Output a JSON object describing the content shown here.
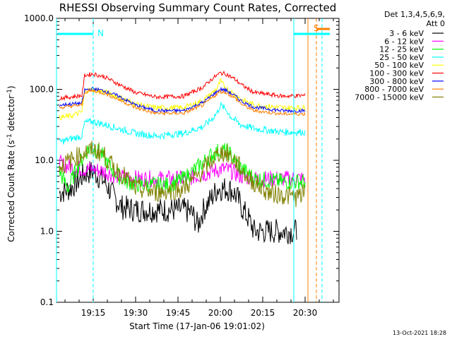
{
  "chart_data": {
    "type": "line",
    "title": "RHESSI Observing Summary Count Rates, Corrected",
    "xlabel": "Start Time (17-Jan-06 19:01:02)",
    "ylabel_main": "Corrected Count Rate (s",
    "ylabel_sup1": "-1",
    "ylabel_mid": " detector",
    "ylabel_sup2": "-1",
    "ylabel_end": ")",
    "yscale": "log",
    "ylim": [
      0.1,
      1000
    ],
    "xlim_minutes": [
      0,
      100
    ],
    "xtick_labels": [
      "19:15",
      "19:30",
      "19:45",
      "20:00",
      "20:15",
      "20:30"
    ],
    "xtick_minutes": [
      13,
      28,
      43,
      58,
      73,
      88
    ],
    "ytick_labels": [
      "0.1",
      "1.0",
      "10.0",
      "100.0",
      "1000.0"
    ],
    "ytick_values": [
      0.1,
      1,
      10,
      100,
      1000
    ],
    "legend_header1": "Det 1,3,4,5,6,9,",
    "legend_header2": "Att 0",
    "series": [
      {
        "name": "3 - 6 keV",
        "color": "#000000",
        "points": [
          [
            1,
            3.5
          ],
          [
            5,
            4
          ],
          [
            10,
            6.5
          ],
          [
            13,
            7
          ],
          [
            17,
            5
          ],
          [
            20,
            3.2
          ],
          [
            23,
            2.2
          ],
          [
            28,
            2
          ],
          [
            35,
            2
          ],
          [
            45,
            2
          ],
          [
            48,
            1.8
          ],
          [
            50,
            1.2
          ],
          [
            52,
            2
          ],
          [
            55,
            3
          ],
          [
            57,
            4
          ],
          [
            60,
            4
          ],
          [
            62,
            3.8
          ],
          [
            64,
            3
          ],
          [
            66,
            2
          ],
          [
            68,
            1.5
          ],
          [
            70,
            1
          ],
          [
            75,
            1
          ],
          [
            80,
            1
          ],
          [
            85,
            1
          ]
        ]
      },
      {
        "name": "6 - 12 keV",
        "color": "#ff00ff",
        "points": [
          [
            1,
            9
          ],
          [
            5,
            8
          ],
          [
            10,
            7.5
          ],
          [
            13,
            7.5
          ],
          [
            17,
            7
          ],
          [
            20,
            6.2
          ],
          [
            24,
            5.8
          ],
          [
            30,
            5.5
          ],
          [
            38,
            5.5
          ],
          [
            45,
            5.5
          ],
          [
            50,
            6
          ],
          [
            55,
            7
          ],
          [
            58,
            7.5
          ],
          [
            60,
            7.5
          ],
          [
            62,
            7
          ],
          [
            65,
            6
          ],
          [
            70,
            5.5
          ],
          [
            80,
            5.5
          ],
          [
            88,
            5.5
          ]
        ]
      },
      {
        "name": "12 - 25 keV",
        "color": "#00ff00",
        "points": [
          [
            1,
            7
          ],
          [
            4,
            4
          ],
          [
            8,
            9
          ],
          [
            11,
            14
          ],
          [
            13,
            15
          ],
          [
            16,
            12
          ],
          [
            19,
            8
          ],
          [
            22,
            6
          ],
          [
            25,
            5
          ],
          [
            30,
            4.5
          ],
          [
            40,
            4.5
          ],
          [
            45,
            5.5
          ],
          [
            50,
            8
          ],
          [
            55,
            12
          ],
          [
            58,
            14
          ],
          [
            61,
            13
          ],
          [
            63,
            10
          ],
          [
            65,
            8
          ],
          [
            70,
            5.5
          ],
          [
            80,
            5
          ],
          [
            88,
            5
          ]
        ]
      },
      {
        "name": "25 - 50 keV",
        "color": "#00ffff",
        "points": [
          [
            1,
            18
          ],
          [
            5,
            20
          ],
          [
            9,
            22
          ],
          [
            10,
            34
          ],
          [
            13,
            35
          ],
          [
            17,
            32
          ],
          [
            22,
            28
          ],
          [
            28,
            24
          ],
          [
            35,
            22
          ],
          [
            45,
            24
          ],
          [
            52,
            30
          ],
          [
            55,
            38
          ],
          [
            57,
            48
          ],
          [
            58,
            60
          ],
          [
            60,
            52
          ],
          [
            62,
            40
          ],
          [
            65,
            32
          ],
          [
            70,
            28
          ],
          [
            80,
            25
          ],
          [
            88,
            25
          ]
        ]
      },
      {
        "name": "50 - 100 keV",
        "color": "#ffff00",
        "points": [
          [
            1,
            40
          ],
          [
            5,
            42
          ],
          [
            9,
            48
          ],
          [
            10,
            95
          ],
          [
            13,
            100
          ],
          [
            17,
            92
          ],
          [
            22,
            78
          ],
          [
            28,
            62
          ],
          [
            35,
            55
          ],
          [
            45,
            55
          ],
          [
            52,
            70
          ],
          [
            55,
            88
          ],
          [
            57,
            105
          ],
          [
            58,
            130
          ],
          [
            60,
            105
          ],
          [
            63,
            85
          ],
          [
            66,
            70
          ],
          [
            70,
            60
          ],
          [
            80,
            55
          ],
          [
            88,
            55
          ]
        ]
      },
      {
        "name": "100 - 300 keV",
        "color": "#ff0000",
        "points": [
          [
            1,
            75
          ],
          [
            5,
            78
          ],
          [
            9,
            82
          ],
          [
            10,
            158
          ],
          [
            13,
            165
          ],
          [
            17,
            150
          ],
          [
            22,
            118
          ],
          [
            28,
            90
          ],
          [
            35,
            78
          ],
          [
            45,
            80
          ],
          [
            52,
            108
          ],
          [
            55,
            140
          ],
          [
            58,
            170
          ],
          [
            60,
            165
          ],
          [
            63,
            140
          ],
          [
            66,
            112
          ],
          [
            70,
            90
          ],
          [
            80,
            80
          ],
          [
            88,
            82
          ]
        ]
      },
      {
        "name": "300 - 800 keV",
        "color": "#0000ff",
        "points": [
          [
            1,
            60
          ],
          [
            5,
            62
          ],
          [
            9,
            64
          ],
          [
            10,
            98
          ],
          [
            13,
            102
          ],
          [
            17,
            95
          ],
          [
            22,
            80
          ],
          [
            28,
            60
          ],
          [
            35,
            50
          ],
          [
            45,
            50
          ],
          [
            52,
            66
          ],
          [
            55,
            82
          ],
          [
            58,
            100
          ],
          [
            60,
            97
          ],
          [
            63,
            82
          ],
          [
            66,
            66
          ],
          [
            70,
            56
          ],
          [
            80,
            50
          ],
          [
            88,
            50
          ]
        ]
      },
      {
        "name": "800 - 7000 keV",
        "color": "#ff8000",
        "points": [
          [
            1,
            55
          ],
          [
            5,
            58
          ],
          [
            9,
            60
          ],
          [
            10,
            92
          ],
          [
            13,
            96
          ],
          [
            17,
            88
          ],
          [
            22,
            72
          ],
          [
            28,
            55
          ],
          [
            35,
            46
          ],
          [
            45,
            46
          ],
          [
            52,
            60
          ],
          [
            55,
            76
          ],
          [
            58,
            93
          ],
          [
            60,
            90
          ],
          [
            63,
            76
          ],
          [
            66,
            60
          ],
          [
            70,
            50
          ],
          [
            80,
            45
          ],
          [
            88,
            45
          ]
        ]
      },
      {
        "name": "7000 - 15000 keV",
        "color": "#808000",
        "points": [
          [
            1,
            8
          ],
          [
            5,
            10
          ],
          [
            10,
            13
          ],
          [
            13,
            14
          ],
          [
            16,
            13
          ],
          [
            20,
            8
          ],
          [
            24,
            6
          ],
          [
            28,
            4
          ],
          [
            35,
            3.5
          ],
          [
            45,
            4
          ],
          [
            50,
            6
          ],
          [
            55,
            10
          ],
          [
            58,
            13
          ],
          [
            61,
            12
          ],
          [
            64,
            9
          ],
          [
            68,
            5.5
          ],
          [
            75,
            3.5
          ],
          [
            85,
            3
          ],
          [
            88,
            3.5
          ]
        ]
      }
    ],
    "annotations": [
      {
        "text": "N",
        "color": "#00ffff",
        "x_minute": 13.5
      },
      {
        "text": "S",
        "color": "#ff8000",
        "x_minute": 90
      }
    ],
    "cyan_vlines_minutes": [
      0,
      13,
      84,
      94
    ],
    "orange_vlines_minutes": [
      89,
      92
    ]
  },
  "footer": {
    "date": "13-Oct-2021 18:28"
  }
}
